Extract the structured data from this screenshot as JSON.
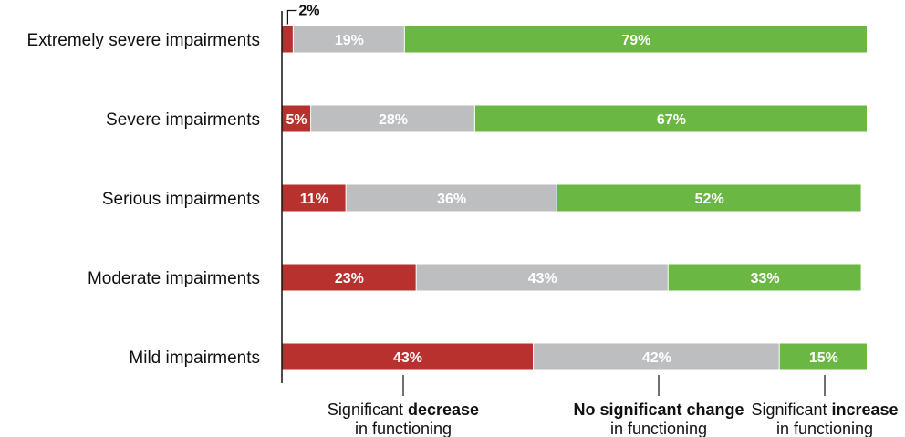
{
  "chart_data": {
    "type": "bar",
    "orientation": "horizontal",
    "stacked": true,
    "categories": [
      "Extremely severe impairments",
      "Severe impairments",
      "Serious impairments",
      "Moderate impairments",
      "Mild impairments"
    ],
    "series": [
      {
        "name": "Significant decrease in functioning",
        "color": "#b8312f",
        "values": [
          2,
          5,
          11,
          23,
          43
        ],
        "labels": [
          "2%",
          "5%",
          "11%",
          "23%",
          "43%"
        ]
      },
      {
        "name": "No significant change in functioning",
        "color": "#bdbec0",
        "values": [
          19,
          28,
          36,
          43,
          42
        ],
        "labels": [
          "19%",
          "28%",
          "36%",
          "43%",
          "42%"
        ]
      },
      {
        "name": "Significant increase in functioning",
        "color": "#6ab744",
        "values": [
          79,
          67,
          52,
          33,
          15
        ],
        "labels": [
          "79%",
          "67%",
          "52%",
          "33%",
          "15%"
        ]
      }
    ],
    "legend": [
      {
        "pre": "Significant ",
        "bold": "decrease",
        "post": "",
        "line2": "in functioning"
      },
      {
        "pre": "",
        "bold": "No significant change",
        "post": "",
        "line2": "in functioning"
      },
      {
        "pre": "Significant ",
        "bold": "increase",
        "post": "",
        "line2": "in functioning"
      }
    ],
    "legend_position": "bottom",
    "xlim": [
      0,
      100
    ],
    "grid": false
  }
}
